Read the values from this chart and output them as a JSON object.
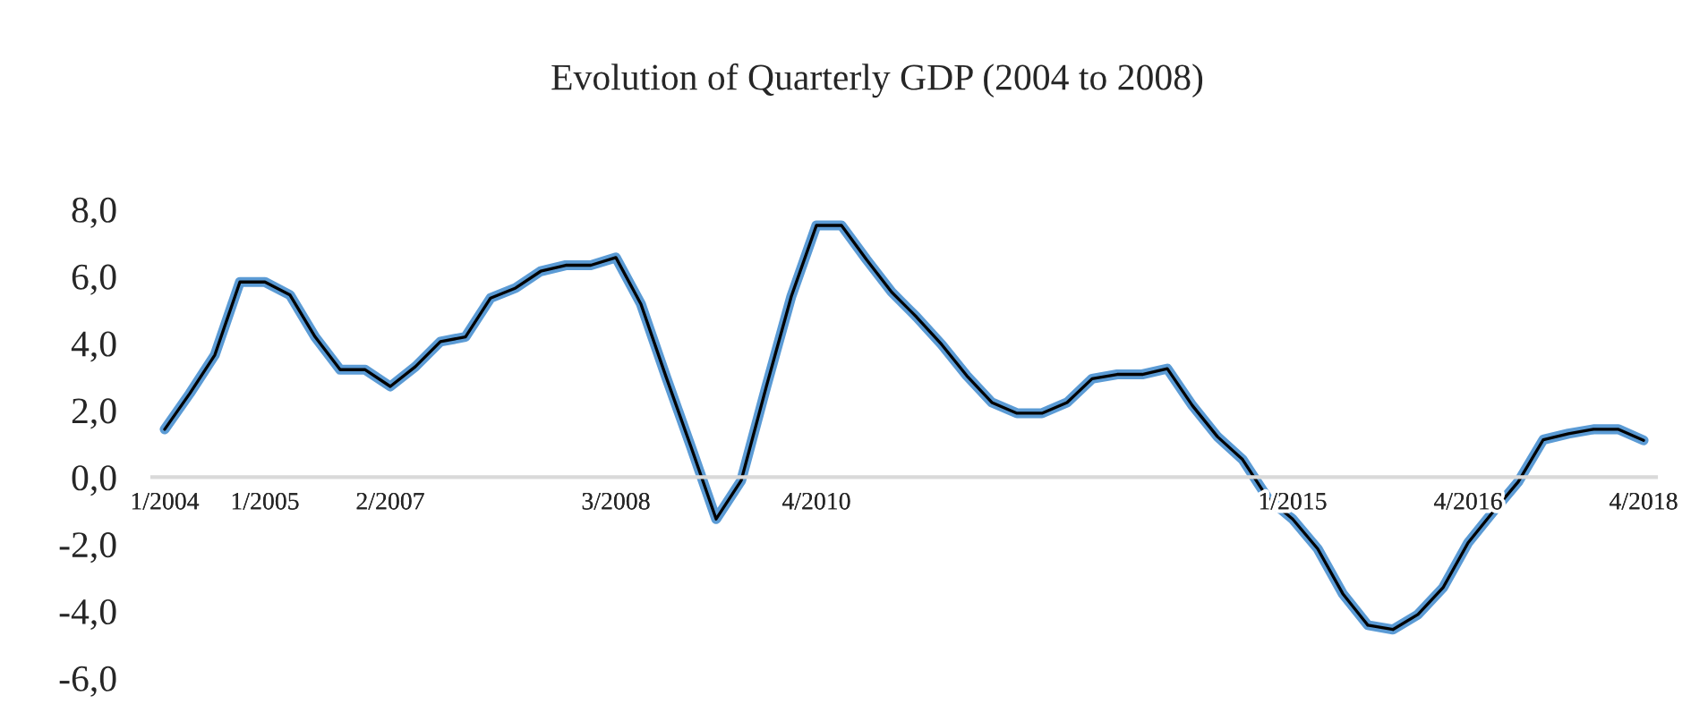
{
  "chart_data": {
    "type": "line",
    "title": "Evolution of Quarterly GDP (2004 to 2008)",
    "categories": [
      "1/2004",
      null,
      null,
      null,
      "1/2005",
      null,
      null,
      null,
      null,
      "2/2007",
      null,
      null,
      null,
      null,
      null,
      null,
      null,
      null,
      "3/2008",
      null,
      null,
      null,
      null,
      null,
      null,
      null,
      "4/2010",
      null,
      null,
      null,
      null,
      null,
      null,
      null,
      null,
      null,
      null,
      null,
      null,
      null,
      null,
      null,
      null,
      null,
      null,
      "1/2015",
      null,
      null,
      null,
      null,
      null,
      null,
      "4/2016",
      null,
      null,
      null,
      null,
      null,
      null,
      "4/2018"
    ],
    "series": [
      {
        "color": "#5b9bd5",
        "values": [
          1.43,
          2.5,
          3.65,
          5.83,
          5.83,
          5.44,
          4.19,
          3.21,
          3.21,
          2.71,
          3.3,
          4.05,
          4.19,
          5.35,
          5.65,
          6.15,
          6.33,
          6.33,
          6.56,
          5.17,
          3.0,
          0.9,
          -1.25,
          -0.1,
          2.7,
          5.4,
          7.52,
          7.52,
          6.5,
          5.53,
          4.78,
          3.96,
          3.03,
          2.23,
          1.91,
          1.91,
          2.23,
          2.94,
          3.07,
          3.07,
          3.24,
          2.14,
          1.21,
          0.53,
          -0.62,
          -1.25,
          -2.14,
          -3.48,
          -4.42,
          -4.55,
          -4.1,
          -3.3,
          -1.96,
          -1.03,
          -0.14,
          1.12,
          1.3,
          1.43,
          1.43,
          1.1
        ]
      }
    ],
    "ylim": [
      -6,
      8
    ],
    "yticks": [
      {
        "value": -6,
        "label": "-6,0"
      },
      {
        "value": -4,
        "label": "-4,0"
      },
      {
        "value": -2,
        "label": "-2,0"
      },
      {
        "value": 0,
        "label": "0,0"
      },
      {
        "value": 2,
        "label": "2,0"
      },
      {
        "value": 4,
        "label": "4,0"
      },
      {
        "value": 6,
        "label": "6,0"
      },
      {
        "value": 8,
        "label": "8,0"
      }
    ],
    "grid": false,
    "marker": "none",
    "line_style": "solid"
  }
}
